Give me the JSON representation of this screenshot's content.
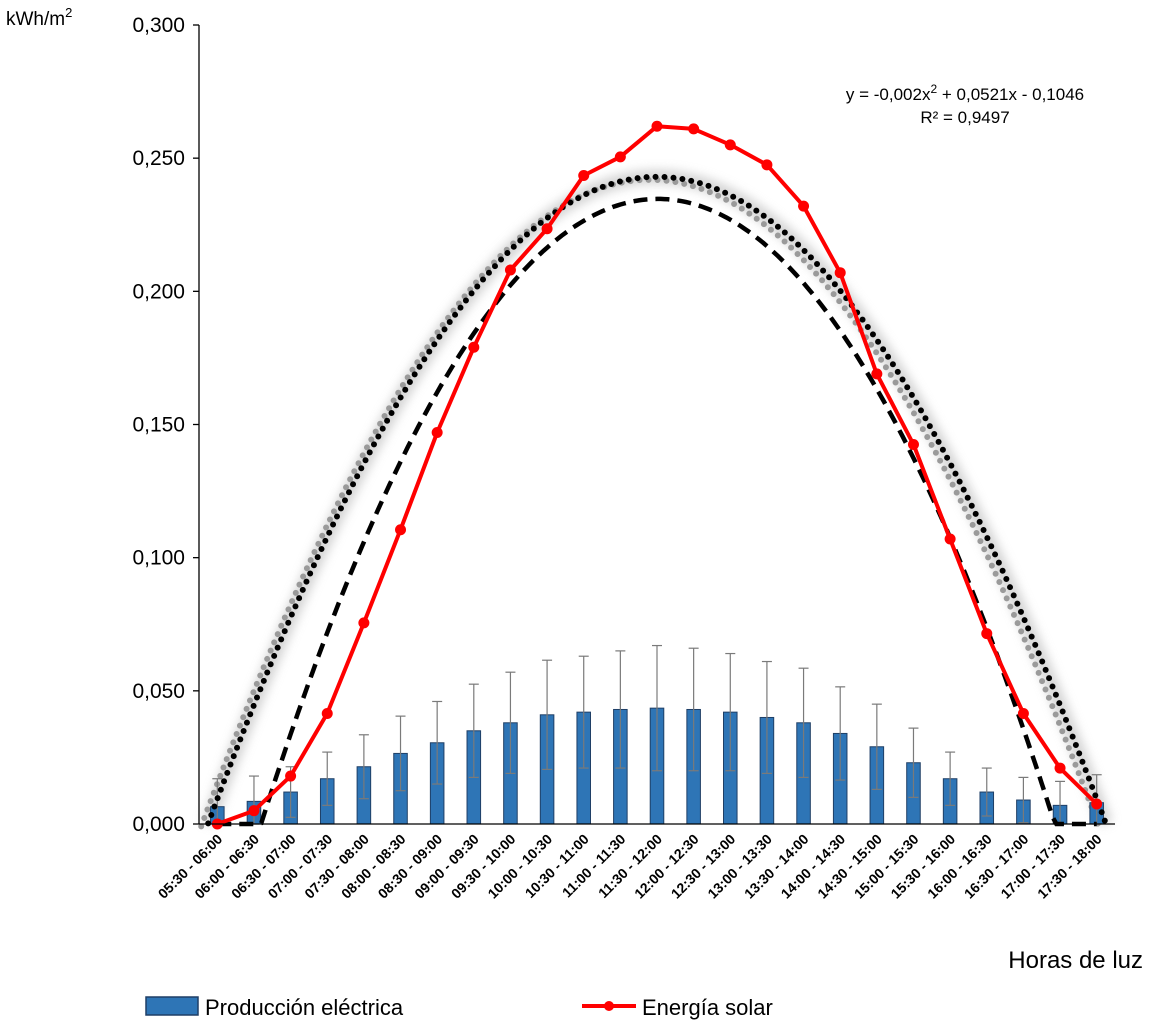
{
  "chart_data": {
    "type": "bar+line",
    "y_unit": "kWh/m",
    "y_unit_sup": "2",
    "xlabel": "Horas de luz",
    "ylim": [
      0,
      0.3
    ],
    "y_ticks": [
      "0,000",
      "0,050",
      "0,100",
      "0,150",
      "0,200",
      "0,250",
      "0,300"
    ],
    "y_tick_values": [
      0,
      0.05,
      0.1,
      0.15,
      0.2,
      0.25,
      0.3
    ],
    "categories": [
      "05:30 - 06:00",
      "06:00 - 06:30",
      "06:30 - 07:00",
      "07:00 - 07:30",
      "07:30 - 08:00",
      "08:00 - 08:30",
      "08:30 - 09:00",
      "09:00 - 09:30",
      "09:30 - 10:00",
      "10:00 - 10:30",
      "10:30 - 11:00",
      "11:00 - 11:30",
      "11:30 - 12:00",
      "12:00 - 12:30",
      "12:30 - 13:00",
      "13:00 - 13:30",
      "13:30 - 14:00",
      "14:00 - 14:30",
      "14:30 - 15:00",
      "15:00 - 15:30",
      "15:30 - 16:00",
      "16:00 - 16:30",
      "16:30 - 17:00",
      "17:00 - 17:30",
      "17:30 - 18:00"
    ],
    "series": [
      {
        "name": "Producción eléctrica",
        "type": "bar",
        "color": "#2e75b6",
        "values": [
          0.0065,
          0.0085,
          0.012,
          0.017,
          0.0215,
          0.0265,
          0.0305,
          0.035,
          0.038,
          0.041,
          0.042,
          0.043,
          0.0435,
          0.043,
          0.042,
          0.04,
          0.038,
          0.034,
          0.029,
          0.023,
          0.017,
          0.012,
          0.009,
          0.007,
          0.008
        ],
        "error": [
          0.0105,
          0.0095,
          0.0095,
          0.01,
          0.012,
          0.014,
          0.0155,
          0.0175,
          0.019,
          0.0205,
          0.021,
          0.022,
          0.0235,
          0.023,
          0.022,
          0.021,
          0.0205,
          0.0175,
          0.016,
          0.013,
          0.01,
          0.009,
          0.0085,
          0.009,
          0.0105
        ]
      },
      {
        "name": "Energía solar",
        "type": "line",
        "color": "#ff0000",
        "values": [
          0.0,
          0.005,
          0.018,
          0.0415,
          0.0755,
          0.1105,
          0.147,
          0.179,
          0.208,
          0.2235,
          0.2435,
          0.2505,
          0.262,
          0.261,
          0.255,
          0.2475,
          0.232,
          0.207,
          0.169,
          0.1425,
          0.107,
          0.0715,
          0.0415,
          0.021,
          0.0075
        ]
      }
    ],
    "trendlines": [
      {
        "for": "Energía solar",
        "style": "dotted",
        "color": "#000000",
        "kind": "polynomial",
        "peak": 0.243
      },
      {
        "for": "Producción eléctrica",
        "style": "dashed",
        "color": "#000000",
        "kind": "polynomial",
        "coef": [
          -0.002,
          0.0521,
          -0.1046
        ]
      }
    ],
    "equation": {
      "line1_pre": "y = -0,002x",
      "line1_sup": "2",
      "line1_post": " + 0,0521x - 0,1046",
      "line2": "R² = 0,9497"
    },
    "legend": {
      "position": "bottom"
    }
  }
}
